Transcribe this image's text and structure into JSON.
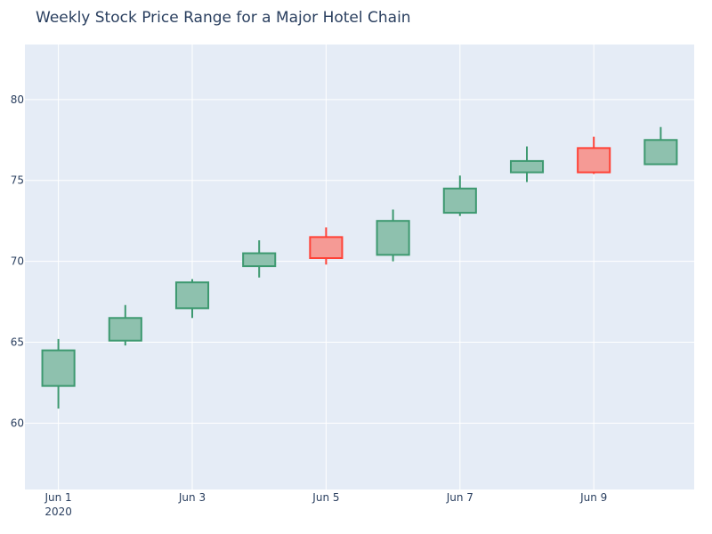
{
  "chart_data": {
    "type": "candlestick",
    "title": "Weekly Stock Price Range for a Major Hotel Chain",
    "xlabel": "",
    "ylabel": "",
    "x_tick_labels": [
      "Jun 1",
      "Jun 3",
      "Jun 5",
      "Jun 7",
      "Jun 9"
    ],
    "x_year_label": "2020",
    "y_tick_labels": [
      "60",
      "65",
      "70",
      "75",
      "80"
    ],
    "y_ticks": [
      60,
      65,
      70,
      75,
      80
    ],
    "ylim": [
      55.9,
      83.4
    ],
    "xlim": [
      "2020-05-31T12:00",
      "2020-06-10T12:00"
    ],
    "grid": true,
    "colors": {
      "increasing": "#3d9970",
      "increasing_fill": "#8ec1ae",
      "decreasing": "#ff4136",
      "decreasing_fill": "#f59a95",
      "plot_bg": "#e5ecf6",
      "grid": "#ffffff",
      "text": "#2a3f5f"
    },
    "candles": [
      {
        "date": "2020-06-01",
        "open": 62.3,
        "high": 65.2,
        "low": 60.9,
        "close": 64.5
      },
      {
        "date": "2020-06-02",
        "open": 65.1,
        "high": 67.3,
        "low": 64.8,
        "close": 66.5
      },
      {
        "date": "2020-06-03",
        "open": 67.1,
        "high": 68.9,
        "low": 66.5,
        "close": 68.7
      },
      {
        "date": "2020-06-04",
        "open": 69.7,
        "high": 71.3,
        "low": 69.0,
        "close": 70.5
      },
      {
        "date": "2020-06-05",
        "open": 71.5,
        "high": 72.1,
        "low": 69.8,
        "close": 70.2
      },
      {
        "date": "2020-06-06",
        "open": 70.4,
        "high": 73.2,
        "low": 70.0,
        "close": 72.5
      },
      {
        "date": "2020-06-07",
        "open": 73.0,
        "high": 75.3,
        "low": 72.8,
        "close": 74.5
      },
      {
        "date": "2020-06-08",
        "open": 75.5,
        "high": 77.1,
        "low": 74.9,
        "close": 76.2
      },
      {
        "date": "2020-06-09",
        "open": 77.0,
        "high": 77.7,
        "low": 75.4,
        "close": 75.5
      },
      {
        "date": "2020-06-10",
        "open": 76.0,
        "high": 78.3,
        "low": 76.0,
        "close": 77.5
      }
    ]
  }
}
